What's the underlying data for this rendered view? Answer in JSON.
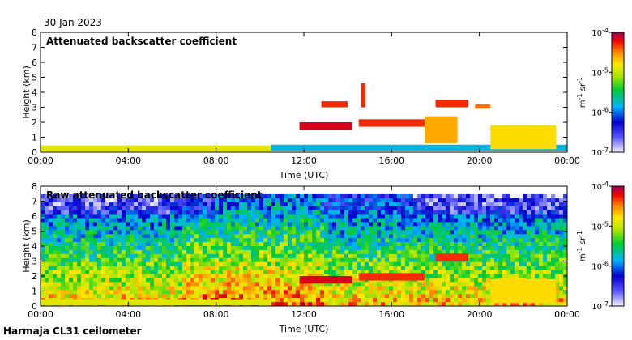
{
  "date_label": "30 Jan 2023",
  "site_label": "Harmaja CL31 ceilometer",
  "chart_data": [
    {
      "type": "heatmap",
      "title": "Attenuated backscatter coefficient",
      "xlabel": "Time (UTC)",
      "ylabel": "Height (km)",
      "x_ticks": [
        "00:00",
        "04:00",
        "08:00",
        "12:00",
        "16:00",
        "20:00",
        "00:00"
      ],
      "x_range_hours": [
        0,
        24
      ],
      "ylim": [
        0,
        8
      ],
      "y_ticks": [
        0,
        1,
        2,
        3,
        4,
        5,
        6,
        7,
        8
      ],
      "colorbar": {
        "scale": "log",
        "range": [
          1e-07,
          0.0001
        ],
        "tick_exponents": [
          "-4",
          "-5",
          "-6",
          "-7"
        ],
        "unit_parts": [
          "m",
          "-1",
          " sr",
          "-1"
        ]
      },
      "layers": [
        {
          "t0": 0.0,
          "t1": 10.5,
          "h0": 0.05,
          "h1": 0.45,
          "level": 0.7
        },
        {
          "t0": 10.5,
          "t1": 24.0,
          "h0": 0.1,
          "h1": 0.5,
          "level": 0.4
        },
        {
          "t0": 11.8,
          "t1": 14.2,
          "h0": 1.5,
          "h1": 2.0,
          "level": 0.95
        },
        {
          "t0": 14.5,
          "t1": 17.5,
          "h0": 1.7,
          "h1": 2.2,
          "level": 0.9
        },
        {
          "t0": 12.8,
          "t1": 14.0,
          "h0": 3.0,
          "h1": 3.4,
          "level": 0.9
        },
        {
          "t0": 14.6,
          "t1": 14.8,
          "h0": 3.0,
          "h1": 4.6,
          "level": 0.9
        },
        {
          "t0": 18.0,
          "t1": 19.5,
          "h0": 3.0,
          "h1": 3.5,
          "level": 0.9
        },
        {
          "t0": 19.8,
          "t1": 20.5,
          "h0": 2.9,
          "h1": 3.2,
          "level": 0.85
        },
        {
          "t0": 17.5,
          "t1": 19.0,
          "h0": 0.6,
          "h1": 2.4,
          "level": 0.8
        },
        {
          "t0": 20.5,
          "t1": 23.5,
          "h0": 0.2,
          "h1": 1.8,
          "level": 0.75
        }
      ]
    },
    {
      "type": "heatmap",
      "title": "Raw attenuated backscatter coefficient",
      "xlabel": "Time (UTC)",
      "ylabel": "Height (km)",
      "x_ticks": [
        "00:00",
        "04:00",
        "08:00",
        "12:00",
        "16:00",
        "20:00",
        "00:00"
      ],
      "x_range_hours": [
        0,
        24
      ],
      "ylim": [
        0,
        8
      ],
      "y_ticks": [
        0,
        1,
        2,
        3,
        4,
        5,
        6,
        7,
        8
      ],
      "colorbar": {
        "scale": "log",
        "range": [
          1e-07,
          0.0001
        ],
        "tick_exponents": [
          "-4",
          "-5",
          "-6",
          "-7"
        ],
        "unit_parts": [
          "m",
          "-1",
          " sr",
          "-1"
        ]
      },
      "layers": [
        {
          "t0": 0.0,
          "t1": 10.5,
          "h0": 0.05,
          "h1": 0.45,
          "level": 0.7
        },
        {
          "t0": 11.8,
          "t1": 14.2,
          "h0": 1.5,
          "h1": 2.0,
          "level": 0.95
        },
        {
          "t0": 14.5,
          "t1": 17.5,
          "h0": 1.7,
          "h1": 2.2,
          "level": 0.9
        },
        {
          "t0": 18.0,
          "t1": 19.5,
          "h0": 3.0,
          "h1": 3.5,
          "level": 0.9
        },
        {
          "t0": 20.5,
          "t1": 23.5,
          "h0": 0.2,
          "h1": 1.8,
          "level": 0.75
        }
      ]
    }
  ]
}
